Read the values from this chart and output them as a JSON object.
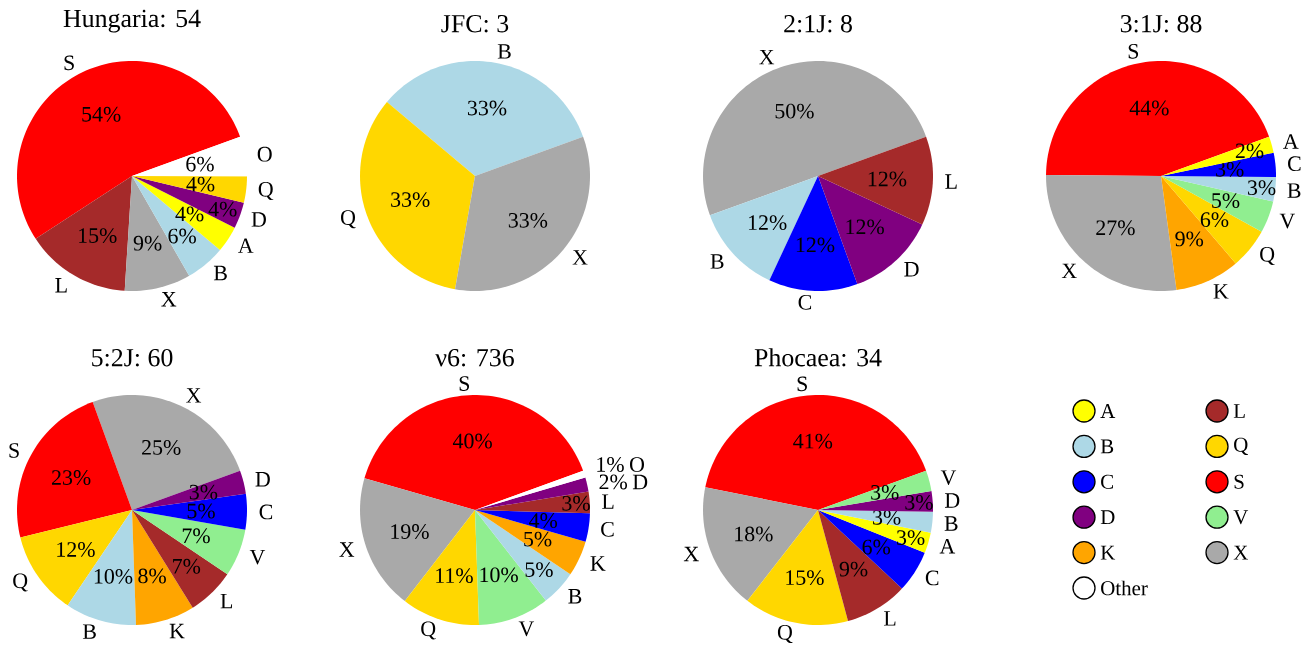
{
  "chart_data": [
    {
      "type": "pie",
      "title": "Hungaria: 54",
      "categories": [
        "S",
        "L",
        "X",
        "B",
        "A",
        "D",
        "Q",
        "O"
      ],
      "values": [
        53.7,
        14.8,
        9.3,
        5.6,
        3.7,
        3.7,
        3.7,
        5.6
      ],
      "value_labels": [
        "54%",
        "15%",
        "9%",
        "6%",
        "4%",
        "4%",
        "4%",
        "6%"
      ],
      "colors": [
        "#ff0000",
        "#a52a2a",
        "#a9a9a9",
        "#add8e6",
        "#ffff00",
        "#800080",
        "#ffd700",
        "#ffffff"
      ]
    },
    {
      "type": "pie",
      "title": "JFC: 3",
      "categories": [
        "B",
        "Q",
        "X"
      ],
      "values": [
        33.3,
        33.3,
        33.3
      ],
      "value_labels": [
        "33%",
        "33%",
        "33%"
      ],
      "colors": [
        "#add8e6",
        "#ffd700",
        "#a9a9a9"
      ]
    },
    {
      "type": "pie",
      "title": "2:1J: 8",
      "categories": [
        "X",
        "B",
        "C",
        "D",
        "L"
      ],
      "values": [
        50,
        12.5,
        12.5,
        12.5,
        12.5
      ],
      "value_labels": [
        "50%",
        "12%",
        "12%",
        "12%",
        "12%"
      ],
      "colors": [
        "#a9a9a9",
        "#add8e6",
        "#0000ff",
        "#800080",
        "#a52a2a"
      ]
    },
    {
      "type": "pie",
      "title": "3:1J: 88",
      "categories": [
        "S",
        "X",
        "K",
        "Q",
        "V",
        "B",
        "C",
        "A"
      ],
      "values": [
        44.3,
        27.3,
        9.1,
        5.7,
        4.5,
        3.4,
        3.4,
        2.3
      ],
      "value_labels": [
        "44%",
        "27%",
        "9%",
        "6%",
        "5%",
        "3%",
        "3%",
        "2%"
      ],
      "colors": [
        "#ff0000",
        "#a9a9a9",
        "#ffa500",
        "#ffd700",
        "#90ee90",
        "#add8e6",
        "#0000ff",
        "#ffff00"
      ]
    },
    {
      "type": "pie",
      "title": "5:2J: 60",
      "categories": [
        "X",
        "S",
        "Q",
        "B",
        "K",
        "L",
        "V",
        "C",
        "D"
      ],
      "values": [
        25,
        23.3,
        11.7,
        10,
        8.3,
        6.7,
        6.7,
        5,
        3.3
      ],
      "value_labels": [
        "25%",
        "23%",
        "12%",
        "10%",
        "8%",
        "7%",
        "7%",
        "5%",
        "3%"
      ],
      "colors": [
        "#a9a9a9",
        "#ff0000",
        "#ffd700",
        "#add8e6",
        "#ffa500",
        "#a52a2a",
        "#90ee90",
        "#0000ff",
        "#800080"
      ]
    },
    {
      "type": "pie",
      "title": "ν6: 736",
      "categories": [
        "S",
        "X",
        "Q",
        "V",
        "B",
        "K",
        "C",
        "L",
        "D",
        "O"
      ],
      "values": [
        40,
        19,
        11,
        10,
        5,
        5,
        4,
        3,
        2,
        1
      ],
      "value_labels": [
        "40%",
        "19%",
        "11%",
        "10%",
        "5%",
        "5%",
        "4%",
        "3%",
        "2%",
        "1%"
      ],
      "colors": [
        "#ff0000",
        "#a9a9a9",
        "#ffd700",
        "#90ee90",
        "#add8e6",
        "#ffa500",
        "#0000ff",
        "#a52a2a",
        "#800080",
        "#ffffff"
      ]
    },
    {
      "type": "pie",
      "title": "Phocaea: 34",
      "categories": [
        "S",
        "X",
        "Q",
        "L",
        "C",
        "A",
        "B",
        "D",
        "V"
      ],
      "values": [
        41.2,
        17.6,
        14.7,
        8.8,
        5.9,
        2.9,
        2.9,
        2.9,
        2.9
      ],
      "value_labels": [
        "41%",
        "18%",
        "15%",
        "9%",
        "6%",
        "3%",
        "3%",
        "3%",
        "3%"
      ],
      "colors": [
        "#ff0000",
        "#a9a9a9",
        "#ffd700",
        "#a52a2a",
        "#0000ff",
        "#ffff00",
        "#add8e6",
        "#800080",
        "#90ee90"
      ]
    },
    {
      "type": "other",
      "categories": [
        "A",
        "B",
        "C",
        "D",
        "K",
        "Other",
        "L",
        "Q",
        "S",
        "V",
        "X"
      ],
      "colors": [
        "#ffff00",
        "#add8e6",
        "#0000ff",
        "#800080",
        "#ffa500",
        "#ffffff",
        "#a52a2a",
        "#ffd700",
        "#ff0000",
        "#90ee90",
        "#a9a9a9"
      ]
    }
  ]
}
